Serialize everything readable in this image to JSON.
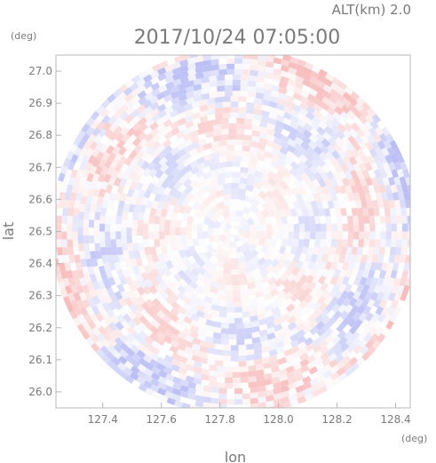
{
  "chart_data": {
    "type": "heatmap",
    "subtitle": "ALT(km) 2.0",
    "title": "2017/10/24 07:05:00",
    "xlabel": "lon",
    "ylabel": "lat",
    "x_unit": "(deg)",
    "y_unit": "(deg)",
    "xlim": [
      127.24,
      128.45
    ],
    "ylim": [
      25.95,
      27.05
    ],
    "x_ticks": [
      "127.4",
      "127.6",
      "127.8",
      "128.0",
      "128.2",
      "128.4"
    ],
    "y_ticks": [
      "26.0",
      "26.1",
      "26.2",
      "26.3",
      "26.4",
      "26.5",
      "26.6",
      "26.7",
      "26.8",
      "26.9",
      "27.0"
    ],
    "radar_center": {
      "lon": 127.85,
      "lat": 26.5
    },
    "radar_radius_deg": 0.6,
    "colormap": [
      "#9aa0f0",
      "#ffffff",
      "#f5a0a0"
    ],
    "grid": false
  }
}
